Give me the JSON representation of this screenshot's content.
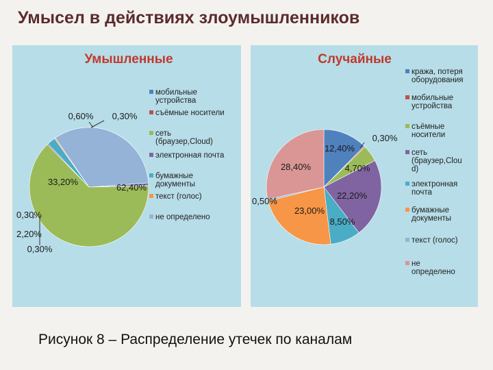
{
  "slide": {
    "title": "Умысел в действиях злоумышленников",
    "caption": "Рисунок 8 – Распределение утечек по каналам"
  },
  "chart_data": [
    {
      "type": "pie",
      "title": "Умышленные",
      "title_color": "#c0392b",
      "legend_position": "right",
      "legend": [
        {
          "name": "мобильные устройства",
          "lines": [
            "мобильные",
            "устройства"
          ],
          "color": "#4f81bd"
        },
        {
          "name": "съёмные носители",
          "lines": [
            "съёмные носители"
          ],
          "color": "#c0504d"
        },
        {
          "name": "сеть (браузер,Cloud)",
          "lines": [
            "сеть",
            "(браузер,Cloud)"
          ],
          "color": "#9bbb59"
        },
        {
          "name": "электронная почта",
          "lines": [
            "электронная почта"
          ],
          "color": "#8064a2"
        },
        {
          "name": "бумажные документы",
          "lines": [
            "бумажные",
            "документы"
          ],
          "color": "#4bacc6"
        },
        {
          "name": "текст (голос)",
          "lines": [
            "текст (голос)"
          ],
          "color": "#f79646"
        },
        {
          "name": "не определено",
          "lines": [
            "не определено"
          ],
          "color": "#95b3d7"
        }
      ],
      "slices": [
        {
          "name": "мобильные устройства",
          "value": 0.6,
          "label": "0,60%",
          "color": "#4f81bd"
        },
        {
          "name": "съёмные носители",
          "value": 0.3,
          "label": "0,30%",
          "color": "#c0504d"
        },
        {
          "name": "сеть (браузер,Cloud)",
          "value": 62.4,
          "label": "62,40%",
          "color": "#9bbb59"
        },
        {
          "name": "электронная почта",
          "value": 0.3,
          "label": "0,30%",
          "color": "#8064a2"
        },
        {
          "name": "бумажные документы",
          "value": 2.2,
          "label": "2,20%",
          "color": "#4bacc6"
        },
        {
          "name": "текст (голос)",
          "value": 0.3,
          "label": "0,30%",
          "color": "#f79646"
        },
        {
          "name": "не определено",
          "value": 33.2,
          "label": "33,20%",
          "color": "#95b3d7"
        }
      ]
    },
    {
      "type": "pie",
      "title": "Случайные",
      "title_color": "#c0392b",
      "legend_position": "right",
      "legend": [
        {
          "name": "кража, потеря оборудования",
          "lines": [
            "кража, потеря",
            "оборудования"
          ],
          "color": "#4f81bd"
        },
        {
          "name": "мобильные устройства",
          "lines": [
            "мобильные",
            "устройства"
          ],
          "color": "#c0504d"
        },
        {
          "name": "съёмные носители",
          "lines": [
            "съёмные",
            "носители"
          ],
          "color": "#9bbb59"
        },
        {
          "name": "сеть (браузер,Cloud)",
          "lines": [
            "сеть",
            "(браузер,Clou",
            "d)"
          ],
          "color": "#8064a2"
        },
        {
          "name": "электронная почта",
          "lines": [
            "электронная",
            "почта"
          ],
          "color": "#4bacc6"
        },
        {
          "name": "бумажные документы",
          "lines": [
            "бумажные",
            "документы"
          ],
          "color": "#f79646"
        },
        {
          "name": "текст (голос)",
          "lines": [
            "текст (голос)"
          ],
          "color": "#95b3d7"
        },
        {
          "name": "не определено",
          "lines": [
            "не",
            "определено"
          ],
          "color": "#d99694"
        }
      ],
      "slices": [
        {
          "name": "кража, потеря оборудования",
          "value": 12.4,
          "label": "12,40%",
          "color": "#4f81bd"
        },
        {
          "name": "мобильные устройства",
          "value": 0.3,
          "label": "0,30%",
          "color": "#c0504d"
        },
        {
          "name": "съёмные носители",
          "value": 4.7,
          "label": "4,70%",
          "color": "#9bbb59"
        },
        {
          "name": "сеть (браузер,Cloud)",
          "value": 22.2,
          "label": "22,20%",
          "color": "#8064a2"
        },
        {
          "name": "электронная почта",
          "value": 8.5,
          "label": "8,50%",
          "color": "#4bacc6"
        },
        {
          "name": "бумажные документы",
          "value": 23.0,
          "label": "23,00%",
          "color": "#f79646"
        },
        {
          "name": "текст (голос)",
          "value": 0.5,
          "label": "0,50%",
          "color": "#95b3d7"
        },
        {
          "name": "не определено",
          "value": 28.4,
          "label": "28,40%",
          "color": "#d99694"
        }
      ]
    }
  ]
}
